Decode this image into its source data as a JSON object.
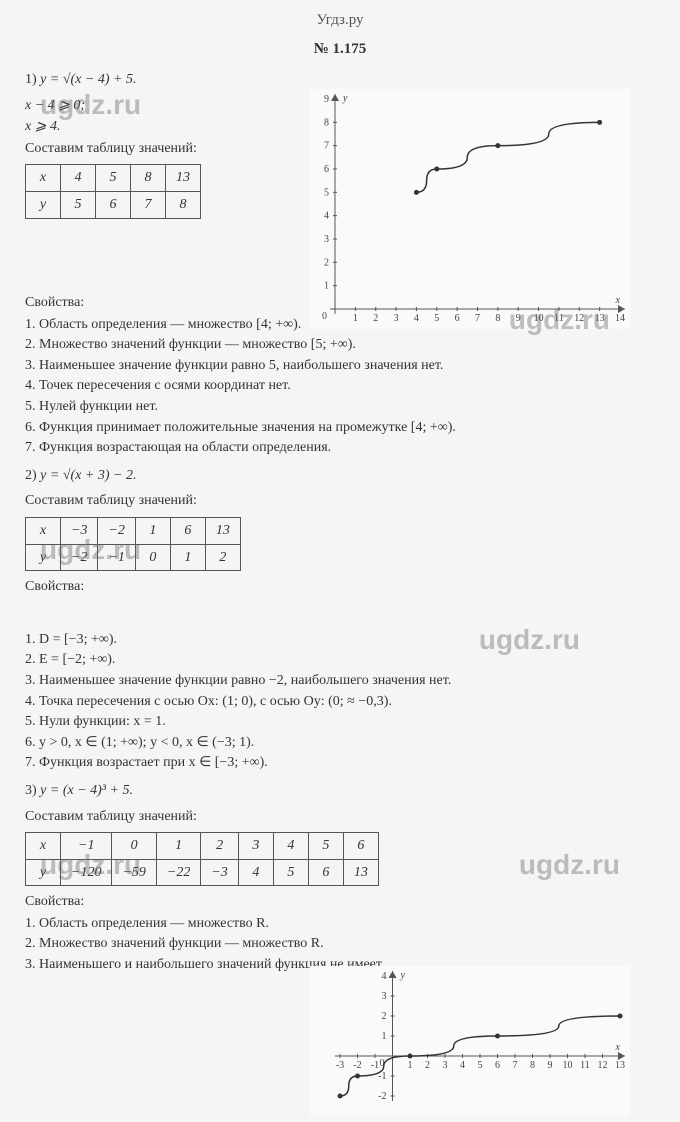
{
  "header": "Угдз.ру",
  "title": "№ 1.175",
  "footer": "ugdz.ru",
  "watermarks": [
    "ugdz.ru",
    "ugdz.ru",
    "ugdz.ru",
    "ugdz.ru",
    "ugdz.ru",
    "ugdz.ru"
  ],
  "part1": {
    "num": "1)",
    "formula": "y = √(x − 4) + 5.",
    "cond1": "x − 4 ⩾ 0;",
    "cond2": "x ⩾ 4.",
    "make_table": "Составим таблицу значений:",
    "table": {
      "row_x_label": "x",
      "row_y_label": "y",
      "x": [
        "4",
        "5",
        "8",
        "13"
      ],
      "y": [
        "5",
        "6",
        "7",
        "8"
      ]
    },
    "props_title": "Свойства:",
    "props": [
      "1. Область определения — множество [4; +∞).",
      "2. Множество значений функции — множество [5; +∞).",
      "3. Наименьшее значение функции равно 5, наибольшего значения нет.",
      "4. Точек пересечения с осями координат нет.",
      "5. Нулей функции нет.",
      "6. Функция принимает положительные значения на промежутке [4; +∞).",
      "7. Функция возрастающая на области определения."
    ],
    "chart": {
      "type": "line",
      "x_min": 0,
      "x_max": 14,
      "y_min": 0,
      "y_max": 9,
      "x_ticks": [
        1,
        2,
        3,
        4,
        5,
        6,
        7,
        8,
        9,
        10,
        11,
        12,
        13,
        14
      ],
      "y_ticks": [
        1,
        2,
        3,
        4,
        5,
        6,
        7,
        8,
        9
      ],
      "points": [
        [
          4,
          5
        ],
        [
          5,
          6
        ],
        [
          8,
          7
        ],
        [
          13,
          8
        ]
      ],
      "line_color": "#333333",
      "point_color": "#333333",
      "axis_color": "#555555",
      "background": "#fafafa",
      "xlabel": "x",
      "ylabel": "y"
    }
  },
  "part2": {
    "num": "2)",
    "formula": "y = √(x + 3) − 2.",
    "make_table": "Составим таблицу значений:",
    "table": {
      "row_x_label": "x",
      "row_y_label": "y",
      "x": [
        "−3",
        "−2",
        "1",
        "6",
        "13"
      ],
      "y": [
        "−2",
        "−1",
        "0",
        "1",
        "2"
      ]
    },
    "props_title": "Свойства:",
    "props": [
      "1. D = [−3; +∞).",
      "2. E = [−2; +∞).",
      "3. Наименьшее значение функции равно −2, наибольшего значения нет.",
      "4. Точка пересечения с осью Ox: (1; 0), с осью Oy: (0; ≈ −0,3).",
      "5. Нули функции: x = 1.",
      "6. y > 0, x ∈ (1; +∞); y < 0, x ∈ (−3; 1).",
      "7. Функция возрастает при x ∈ [−3; +∞)."
    ],
    "chart": {
      "type": "line",
      "x_min": -3,
      "x_max": 13,
      "y_min": -2,
      "y_max": 4,
      "x_ticks": [
        -3,
        -2,
        -1,
        1,
        2,
        3,
        4,
        5,
        6,
        7,
        8,
        9,
        10,
        11,
        12,
        13
      ],
      "y_ticks": [
        -2,
        -1,
        1,
        2,
        3,
        4
      ],
      "points": [
        [
          -3,
          -2
        ],
        [
          -2,
          -1
        ],
        [
          1,
          0
        ],
        [
          6,
          1
        ],
        [
          13,
          2
        ]
      ],
      "line_color": "#333333",
      "point_color": "#333333",
      "axis_color": "#555555",
      "background": "#fafafa",
      "xlabel": "x",
      "ylabel": "y"
    }
  },
  "part3": {
    "num": "3)",
    "formula": "y = (x − 4)³ + 5.",
    "make_table": "Составим таблицу значений:",
    "table": {
      "row_x_label": "x",
      "row_y_label": "y",
      "x": [
        "−1",
        "0",
        "1",
        "2",
        "3",
        "4",
        "5",
        "6"
      ],
      "y": [
        "−120",
        "−59",
        "−22",
        "−3",
        "4",
        "5",
        "6",
        "13"
      ]
    },
    "props_title": "Свойства:",
    "props": [
      "1. Область определения — множество R.",
      "2. Множество значений функции — множество R.",
      "3. Наименьшего и наибольшего значений функция не имеет."
    ]
  }
}
